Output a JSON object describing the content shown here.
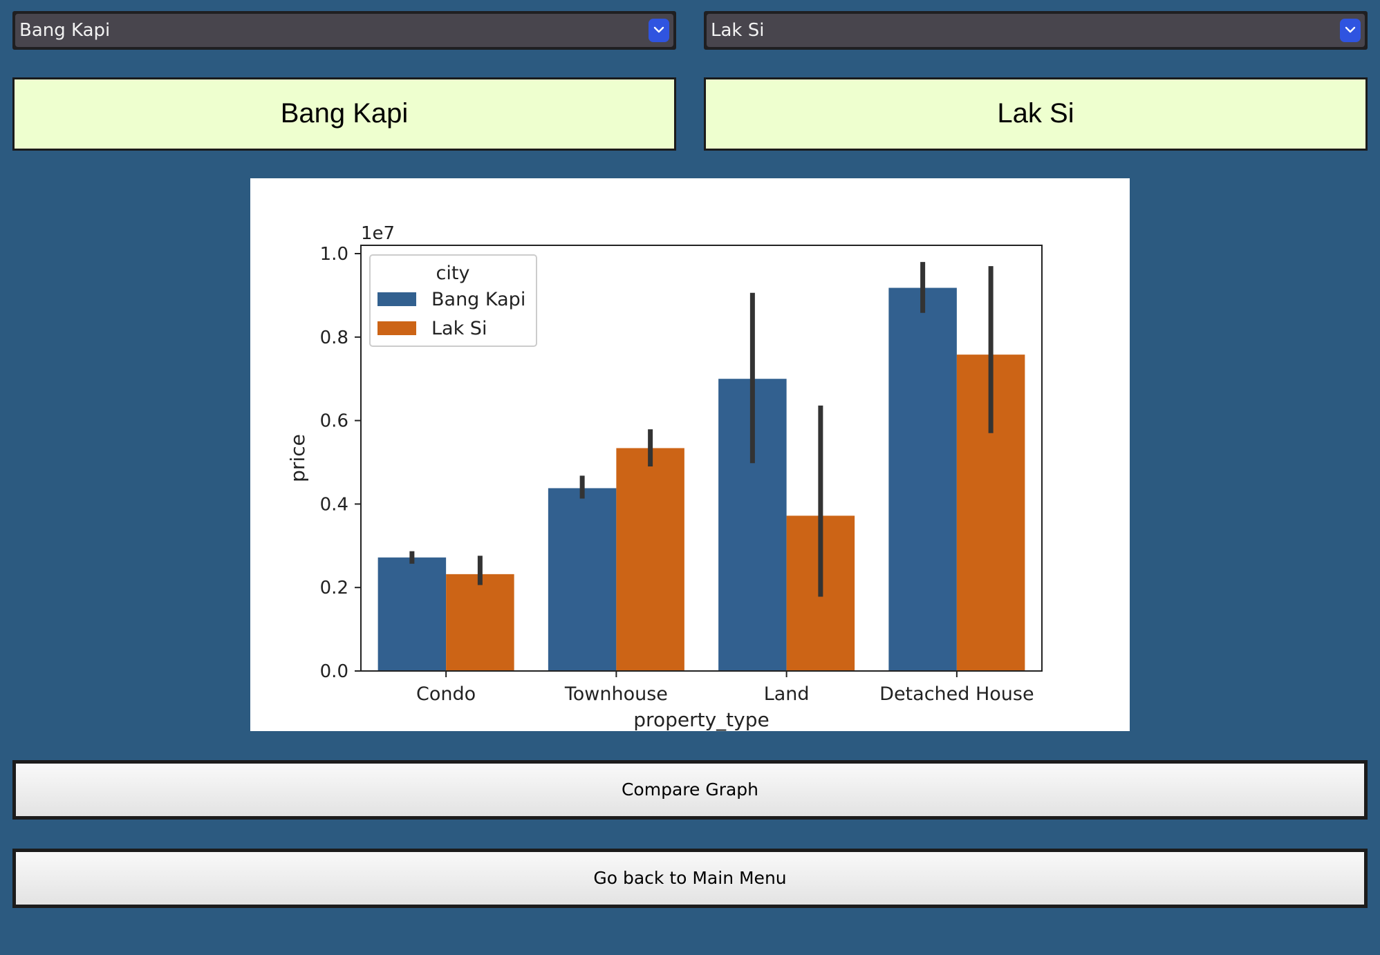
{
  "left_select": {
    "value": "Bang Kapi"
  },
  "right_select": {
    "value": "Lak Si"
  },
  "left_label": "Bang Kapi",
  "right_label": "Lak Si",
  "buttons": {
    "compare": "Compare Graph",
    "back": "Go back to Main Menu"
  },
  "colors": {
    "background": "#2c5a80",
    "label_bg": "#eeffcf",
    "dropdown_accent": "#2f54e0"
  },
  "chart_data": {
    "type": "bar",
    "categories": [
      "Condo",
      "Townhouse",
      "Land",
      "Detached House"
    ],
    "series": [
      {
        "name": "Bang Kapi",
        "color": "#32608f",
        "values": [
          2720000,
          4380000,
          7000000,
          9180000
        ],
        "ci": [
          [
            2570000,
            2870000
          ],
          [
            4130000,
            4680000
          ],
          [
            4980000,
            9060000
          ],
          [
            8580000,
            9800000
          ]
        ]
      },
      {
        "name": "Lak Si",
        "color": "#cc6416",
        "values": [
          2320000,
          5340000,
          3720000,
          7580000
        ],
        "ci": [
          [
            2060000,
            2760000
          ],
          [
            4900000,
            5790000
          ],
          [
            1780000,
            6360000
          ],
          [
            5700000,
            9700000
          ]
        ]
      }
    ],
    "ylim": [
      0,
      1.0
    ],
    "yticks": [
      "0.0",
      "0.2",
      "0.4",
      "0.6",
      "0.8",
      "1.0"
    ],
    "yscale_label": "1e7",
    "xlabel": "property_type",
    "ylabel": "price",
    "legend_title": "city",
    "legend_position": "upper-left"
  }
}
